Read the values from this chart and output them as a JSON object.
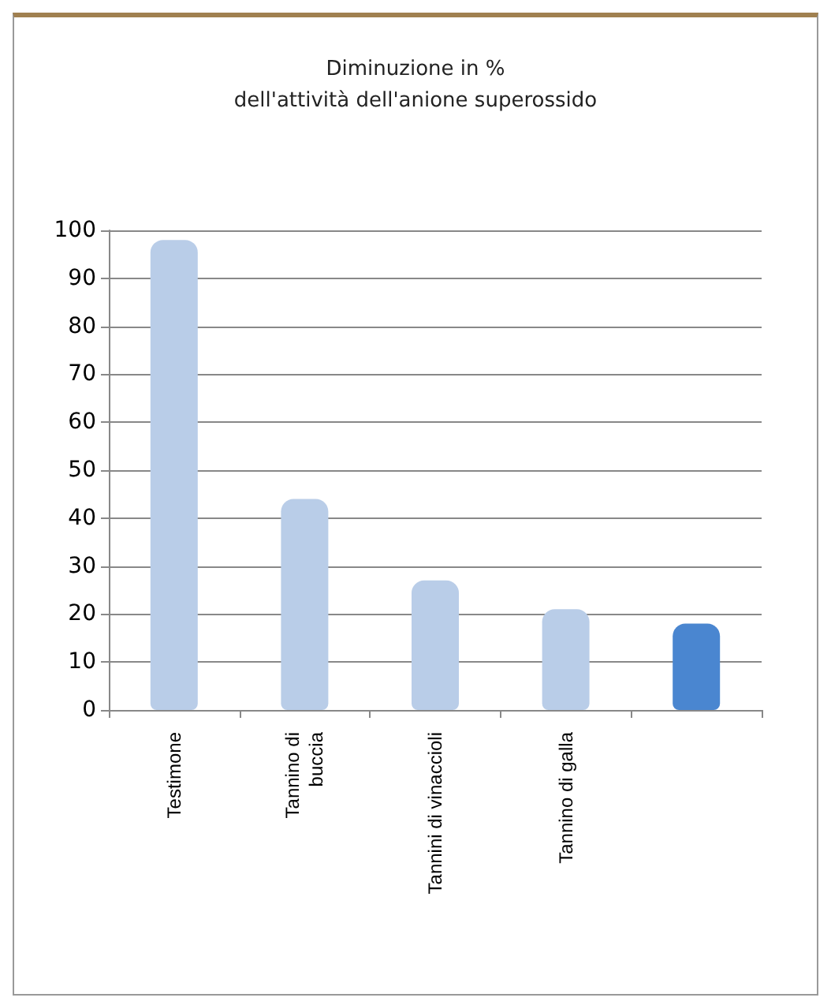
{
  "chart_data": {
    "type": "bar",
    "title": "Diminuzione in %\ndell'attività dell'anione superossido",
    "categories": [
      "Testimone",
      "Tannino di\nbuccia",
      "Tannini di vinaccioli",
      "Tannino di galla",
      null
    ],
    "values": [
      98,
      44,
      27,
      21,
      18
    ],
    "colors": [
      "#b9cde8",
      "#b9cde8",
      "#b9cde8",
      "#b9cde8",
      "#4a86d0"
    ],
    "ylim": [
      0,
      100
    ],
    "yticks": [
      0,
      10,
      20,
      30,
      40,
      50,
      60,
      70,
      80,
      90,
      100
    ],
    "grid": "y"
  }
}
